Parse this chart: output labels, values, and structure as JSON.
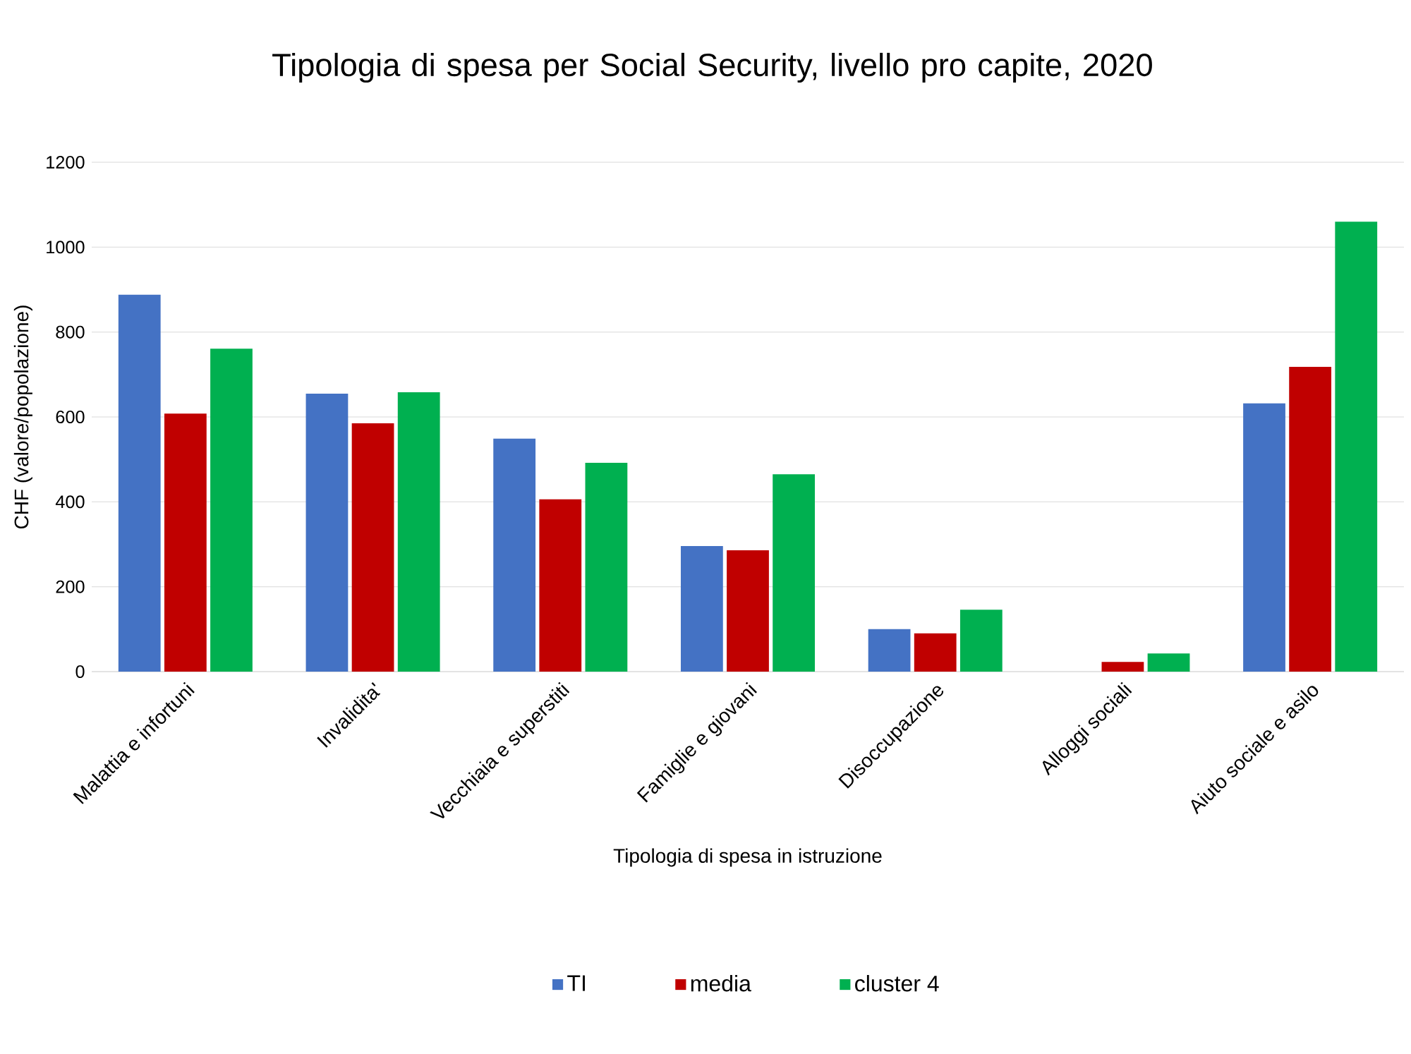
{
  "chart_data": {
    "type": "bar",
    "title": "Tipologia di spesa per Social Security, livello pro capite, 2020",
    "xlabel": "Tipologia di spesa in istruzione",
    "ylabel": "CHF (valore/popolazione)",
    "categories": [
      "Malattia e infortuni",
      "Invalidita'",
      "Vecchiaia e superstiti",
      "Famiglie e giovani",
      "Disoccupazione",
      "Alloggi sociali",
      "Aiuto sociale e asilo"
    ],
    "series": [
      {
        "name": "TI",
        "color": "#4472c4",
        "values": [
          888,
          655,
          549,
          296,
          100,
          null,
          632
        ]
      },
      {
        "name": "media",
        "color": "#c00000",
        "values": [
          608,
          585,
          406,
          286,
          90,
          23,
          718
        ]
      },
      {
        "name": "cluster 4",
        "color": "#00b050",
        "values": [
          761,
          658,
          492,
          465,
          146,
          43,
          1060
        ]
      }
    ],
    "ylim": [
      0,
      1200
    ],
    "yticks": [
      0,
      200,
      400,
      600,
      800,
      1000,
      1200
    ],
    "grid": "y",
    "legend": "bottom"
  }
}
